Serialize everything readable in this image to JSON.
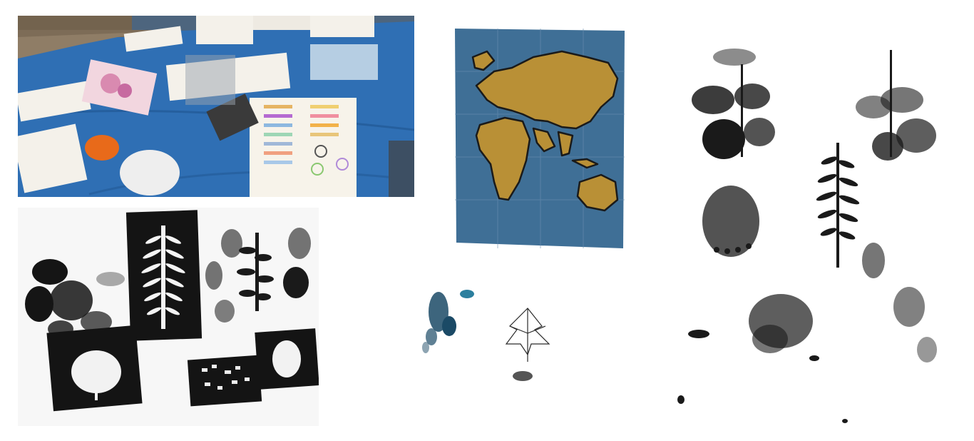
{
  "collage": {
    "panels": [
      {
        "id": "workshop",
        "icon": "workshop-table-photo"
      },
      {
        "id": "leaf-sheet",
        "icon": "leaf-stencil-print"
      },
      {
        "id": "map",
        "icon": "painted-world-map"
      },
      {
        "id": "blue-print",
        "icon": "blue-leaf-print"
      },
      {
        "id": "fern-print",
        "icon": "fern-monoprint"
      }
    ]
  },
  "colors": {
    "tablecloth": "#2f6fb4",
    "ocean": "#3f6f96",
    "land": "#b99036",
    "ink": "#151515",
    "paper": "#ffffff"
  }
}
